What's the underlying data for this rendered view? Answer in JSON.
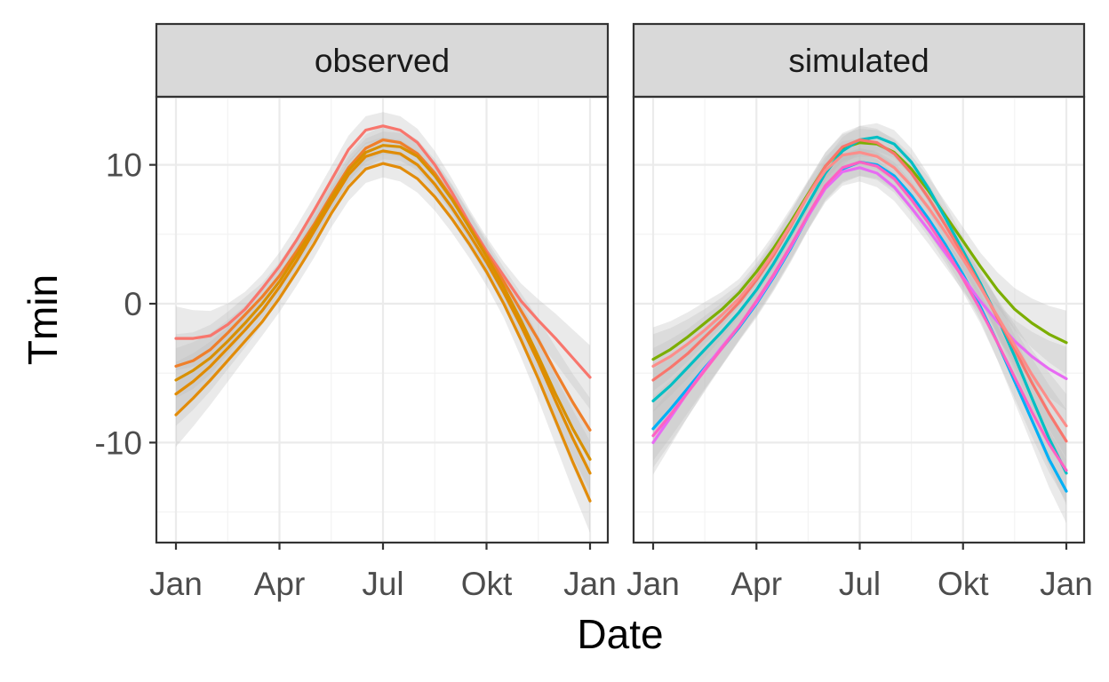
{
  "chart_data": {
    "type": "line",
    "xlabel": "Date",
    "ylabel": "Tmin",
    "x_ticks": [
      "Jan",
      "Apr",
      "Jul",
      "Okt",
      "Jan"
    ],
    "y_ticks": [
      10,
      0,
      -10
    ],
    "ylim": [
      -17.2,
      14.9
    ],
    "grid": true,
    "legend": "none",
    "x_months": [
      0,
      0.5,
      1,
      1.5,
      2,
      2.5,
      3,
      3.5,
      4,
      4.5,
      5,
      5.5,
      6,
      6.5,
      7,
      7.5,
      8,
      8.5,
      9,
      9.5,
      10,
      10.5,
      11,
      11.5,
      12
    ],
    "ribbon_color": "#bebebe",
    "panels": [
      {
        "strip": "observed",
        "series": [
          {
            "color": "#f8766d",
            "values": [
              -2.5,
              -2.5,
              -2.3,
              -1.5,
              -0.4,
              1.1,
              2.7,
              4.6,
              6.7,
              8.9,
              11.1,
              12.5,
              12.8,
              12.5,
              11.6,
              10.0,
              8.0,
              5.8,
              3.8,
              2.0,
              0.2,
              -1.2,
              -2.5,
              -3.9,
              -5.3
            ]
          },
          {
            "color": "#ef7f2a",
            "values": [
              -4.5,
              -4.1,
              -3.3,
              -2.1,
              -0.8,
              0.5,
              2.0,
              3.8,
              5.7,
              7.8,
              9.8,
              11.2,
              11.8,
              11.6,
              10.8,
              9.4,
              7.6,
              5.6,
              3.6,
              1.6,
              -0.5,
              -2.6,
              -4.9,
              -7.1,
              -9.1
            ]
          },
          {
            "color": "#e08b00",
            "values": [
              -6.5,
              -5.6,
              -4.5,
              -3.2,
              -1.9,
              -0.5,
              1.2,
              3.1,
              5.2,
              7.3,
              9.3,
              10.6,
              11.0,
              10.8,
              10.0,
              8.6,
              6.9,
              5.0,
              3.0,
              0.8,
              -1.6,
              -4.2,
              -7.0,
              -9.7,
              -12.2
            ]
          },
          {
            "color": "#e28c0a",
            "values": [
              -8.0,
              -6.8,
              -5.5,
              -4.1,
              -2.7,
              -1.3,
              0.4,
              2.3,
              4.3,
              6.5,
              8.4,
              9.7,
              10.1,
              9.8,
              9.0,
              7.7,
              6.1,
              4.3,
              2.3,
              0.0,
              -2.6,
              -5.4,
              -8.4,
              -11.4,
              -14.2
            ]
          },
          {
            "color": "#d89000",
            "values": [
              -5.5,
              -4.8,
              -3.9,
              -2.7,
              -1.4,
              0.0,
              1.6,
              3.5,
              5.5,
              7.6,
              9.6,
              10.9,
              11.4,
              11.3,
              10.6,
              9.2,
              7.5,
              5.5,
              3.4,
              1.2,
              -1.2,
              -3.8,
              -6.5,
              -9.0,
              -11.2
            ]
          }
        ]
      },
      {
        "strip": "simulated",
        "series": [
          {
            "color": "#7cae00",
            "values": [
              -4.0,
              -3.3,
              -2.4,
              -1.4,
              -0.4,
              0.8,
              2.3,
              4.0,
              5.9,
              7.9,
              9.9,
              11.2,
              11.6,
              11.5,
              10.9,
              9.7,
              8.1,
              6.3,
              4.5,
              2.7,
              1.0,
              -0.4,
              -1.4,
              -2.2,
              -2.8
            ]
          },
          {
            "color": "#00bfc4",
            "values": [
              -7.0,
              -5.9,
              -4.6,
              -3.3,
              -2.0,
              -0.6,
              1.0,
              2.9,
              5.0,
              7.2,
              9.4,
              11.0,
              11.8,
              12.0,
              11.5,
              10.2,
              8.3,
              6.1,
              3.8,
              1.5,
              -1.0,
              -3.8,
              -6.8,
              -9.7,
              -12.2
            ]
          },
          {
            "color": "#00b0f6",
            "values": [
              -9.0,
              -7.6,
              -6.1,
              -4.6,
              -3.2,
              -1.7,
              0.0,
              1.9,
              4.0,
              6.3,
              8.4,
              9.7,
              10.2,
              10.0,
              9.2,
              7.8,
              6.1,
              4.2,
              2.1,
              -0.2,
              -2.8,
              -5.6,
              -8.4,
              -11.2,
              -13.5
            ]
          },
          {
            "color": "#e76bf3",
            "values": [
              -10.0,
              -8.2,
              -6.4,
              -4.7,
              -3.1,
              -1.6,
              0.1,
              2.0,
              4.1,
              6.3,
              8.3,
              9.5,
              9.8,
              9.4,
              8.4,
              6.9,
              5.3,
              3.6,
              1.9,
              0.2,
              -1.3,
              -2.7,
              -3.8,
              -4.7,
              -5.4
            ]
          },
          {
            "color": "#ff61c3",
            "values": [
              -9.5,
              -8.0,
              -6.4,
              -4.8,
              -3.2,
              -1.6,
              0.2,
              2.1,
              4.2,
              6.4,
              8.5,
              9.8,
              10.2,
              9.9,
              9.0,
              7.5,
              5.8,
              3.9,
              1.8,
              -0.4,
              -2.8,
              -5.3,
              -7.8,
              -10.1,
              -12.0
            ]
          },
          {
            "color": "#f8766d",
            "values": [
              -5.5,
              -4.6,
              -3.6,
              -2.4,
              -1.2,
              0.1,
              1.7,
              3.5,
              5.6,
              7.8,
              9.9,
              11.3,
              11.8,
              11.6,
              10.8,
              9.4,
              7.6,
              5.6,
              3.5,
              1.3,
              -1.0,
              -3.3,
              -5.7,
              -7.9,
              -9.9
            ]
          },
          {
            "color": "#fc8d8a",
            "values": [
              -4.5,
              -3.8,
              -2.9,
              -1.9,
              -0.8,
              0.4,
              1.9,
              3.7,
              5.7,
              7.8,
              9.6,
              10.7,
              10.9,
              10.6,
              9.8,
              8.5,
              6.9,
              5.1,
              3.2,
              1.2,
              -0.9,
              -3.0,
              -5.1,
              -7.0,
              -8.8
            ]
          }
        ]
      }
    ]
  }
}
